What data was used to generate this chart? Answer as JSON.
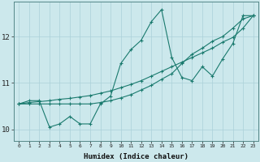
{
  "background_color": "#cce8ec",
  "grid_color": "#aad0d8",
  "line_color": "#1a7a6e",
  "xlabel": "Humidex (Indice chaleur)",
  "xlim_min": -0.5,
  "xlim_max": 23.5,
  "ylim_min": 9.75,
  "ylim_max": 12.75,
  "yticks": [
    10,
    11,
    12
  ],
  "xticks": [
    0,
    1,
    2,
    3,
    4,
    5,
    6,
    7,
    8,
    9,
    10,
    11,
    12,
    13,
    14,
    15,
    16,
    17,
    18,
    19,
    20,
    21,
    22,
    23
  ],
  "series": [
    {
      "x": [
        0,
        1,
        2,
        3,
        4,
        5,
        6,
        7,
        8,
        9,
        10,
        11,
        12,
        13,
        14,
        15,
        16,
        17,
        18,
        19,
        20,
        21,
        22,
        23
      ],
      "y": [
        10.55,
        10.62,
        10.62,
        10.05,
        10.12,
        10.28,
        10.12,
        10.12,
        10.55,
        10.72,
        11.42,
        11.72,
        11.92,
        12.32,
        12.58,
        11.55,
        11.12,
        11.05,
        11.35,
        11.15,
        11.52,
        11.85,
        12.45,
        12.45
      ]
    },
    {
      "x": [
        0,
        1,
        2,
        3,
        4,
        5,
        6,
        7,
        8,
        9,
        10,
        11,
        12,
        13,
        14,
        15,
        16,
        17,
        18,
        19,
        20,
        21,
        22,
        23
      ],
      "y": [
        10.55,
        10.58,
        10.6,
        10.62,
        10.65,
        10.67,
        10.7,
        10.73,
        10.78,
        10.83,
        10.9,
        10.97,
        11.05,
        11.15,
        11.25,
        11.35,
        11.45,
        11.55,
        11.65,
        11.75,
        11.88,
        11.98,
        12.18,
        12.45
      ]
    },
    {
      "x": [
        0,
        1,
        2,
        3,
        4,
        5,
        6,
        7,
        8,
        9,
        10,
        11,
        12,
        13,
        14,
        15,
        16,
        17,
        18,
        19,
        20,
        21,
        22,
        23
      ],
      "y": [
        10.55,
        10.55,
        10.55,
        10.55,
        10.55,
        10.55,
        10.55,
        10.55,
        10.58,
        10.62,
        10.68,
        10.75,
        10.85,
        10.95,
        11.08,
        11.2,
        11.42,
        11.62,
        11.75,
        11.9,
        12.0,
        12.18,
        12.38,
        12.45
      ]
    }
  ]
}
